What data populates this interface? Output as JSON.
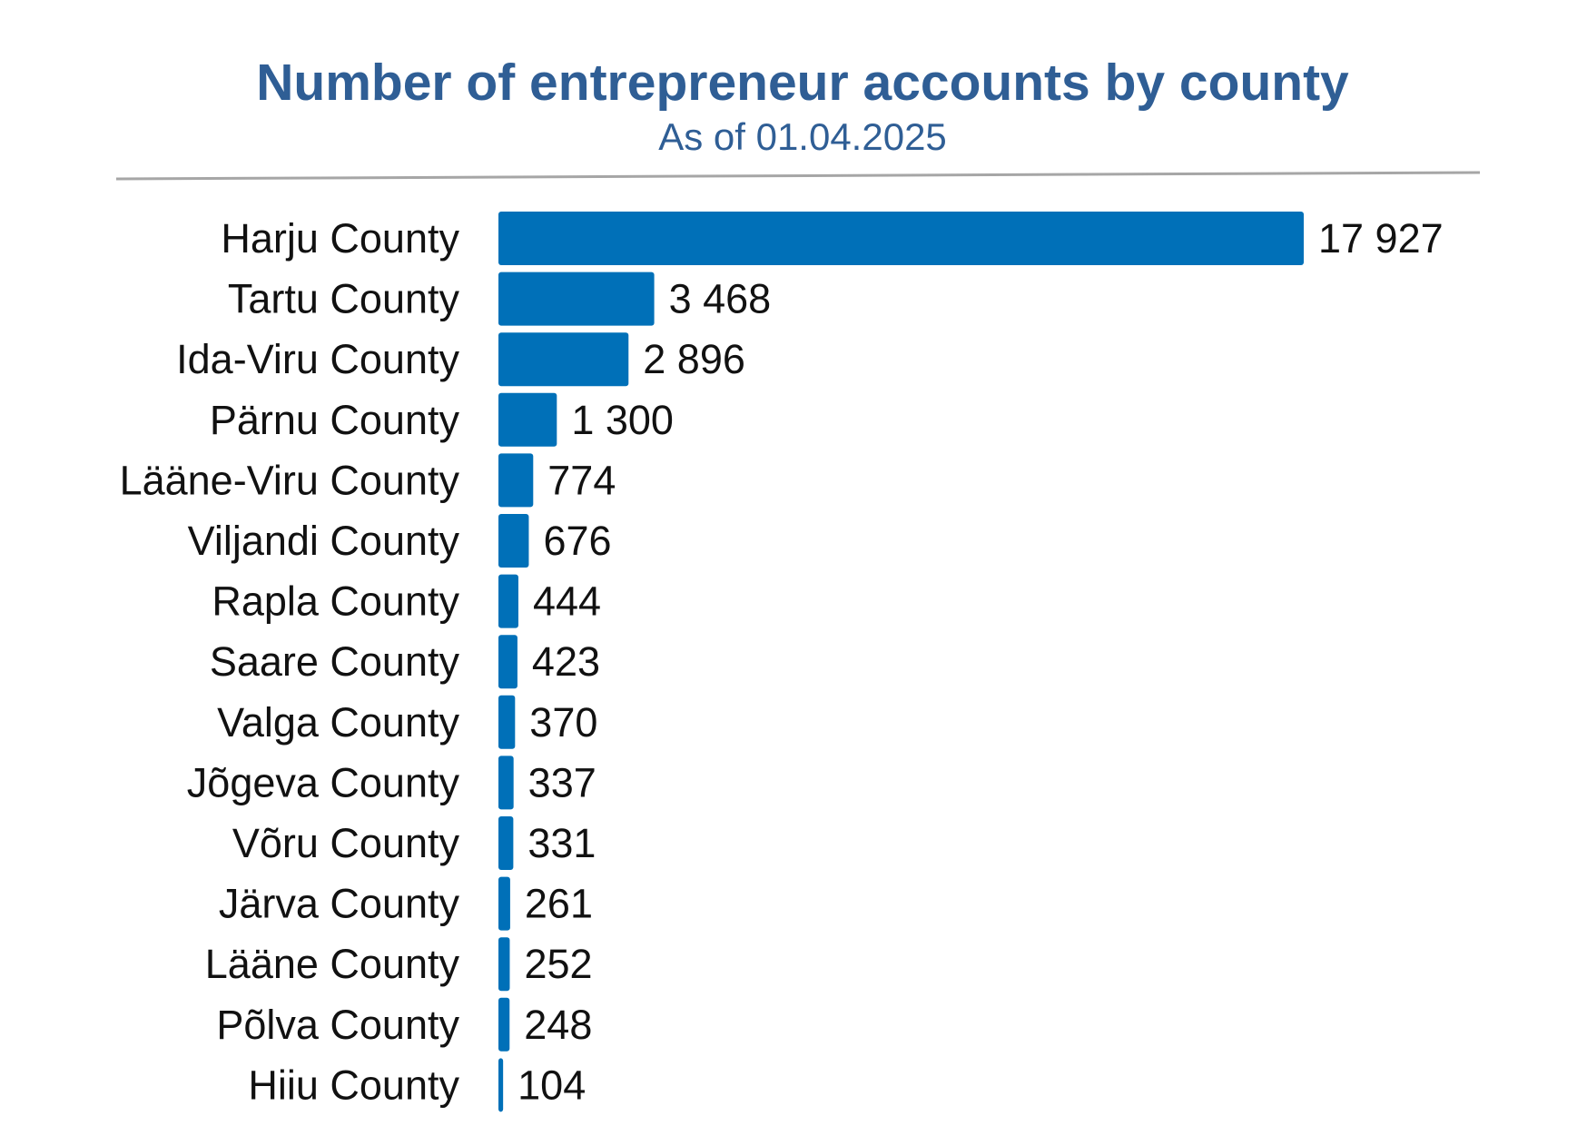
{
  "colors": {
    "title": "#2f5e95",
    "bar": "#0070b8",
    "rule": "#a6a6a6",
    "text": "#111111"
  },
  "chart_data": {
    "type": "bar",
    "orientation": "horizontal",
    "title": "Number of entrepreneur accounts by county",
    "subtitle": "As of 01.04.2025",
    "xlabel": "",
    "ylabel": "",
    "xlim": [
      0,
      17927
    ],
    "grid": false,
    "legend": "none",
    "categories": [
      "Harju County",
      "Tartu County",
      "Ida-Viru County",
      "Pärnu County",
      "Lääne-Viru County",
      "Viljandi County",
      "Rapla County",
      "Saare County",
      "Valga County",
      "Jõgeva County",
      "Võru County",
      "Järva County",
      "Lääne County",
      "Põlva County",
      "Hiiu County"
    ],
    "values": [
      17927,
      3468,
      2896,
      1300,
      774,
      676,
      444,
      423,
      370,
      337,
      331,
      261,
      252,
      248,
      104
    ],
    "value_labels": [
      "17 927",
      "3 468",
      "2 896",
      "1 300",
      "774",
      "676",
      "444",
      "423",
      "370",
      "337",
      "331",
      "261",
      "252",
      "248",
      "104"
    ]
  }
}
